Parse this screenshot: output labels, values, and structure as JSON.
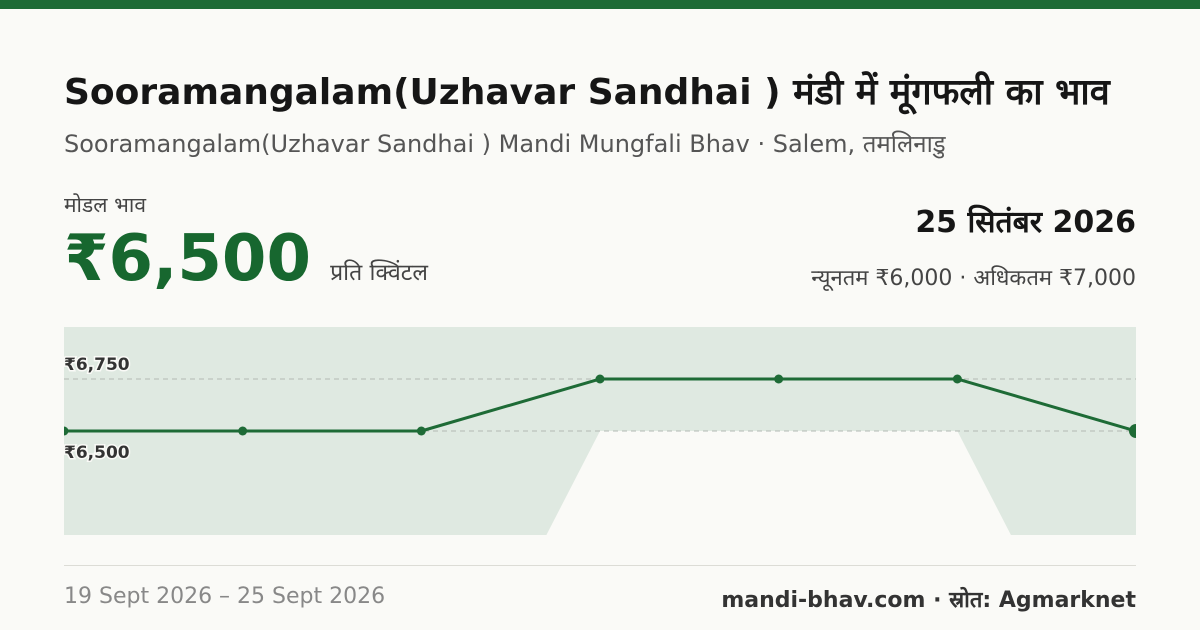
{
  "header": {
    "title": "Sooramangalam(Uzhavar Sandhai ) मंडी में मूंगफली का भाव",
    "subtitle": "Sooramangalam(Uzhavar Sandhai ) Mandi Mungfali Bhav · Salem, तमलिनाडु"
  },
  "price": {
    "label": "मोडल भाव",
    "value": "₹6,500",
    "unit": "प्रति क्विंटल"
  },
  "summary": {
    "date": "25 सितंबर 2026",
    "minmax": "न्यूनतम ₹6,000 · अधिकतम ₹7,000"
  },
  "chart_data": {
    "type": "line",
    "ylim": [
      6000,
      7000
    ],
    "series": [
      {
        "values": [
          6500,
          6500,
          6500,
          6750,
          6750,
          6750,
          6500
        ]
      }
    ],
    "band": {
      "min": [
        6000,
        6000,
        6000,
        6500,
        6500,
        6500,
        6000
      ],
      "max": [
        7000,
        7000,
        7000,
        7000,
        7000,
        7000,
        7000
      ]
    },
    "ticks": [
      {
        "value": 6750,
        "label": "₹6,750"
      },
      {
        "value": 6500,
        "label": "₹6,500"
      }
    ],
    "colors": {
      "line": "#1e6b36",
      "band": "#dfe9e1",
      "grid": "#b3b9b4"
    }
  },
  "footer": {
    "date_range": "19 Sept 2026 – 25 Sept 2026",
    "source": "mandi-bhav.com · स्रोत: Agmarknet"
  }
}
